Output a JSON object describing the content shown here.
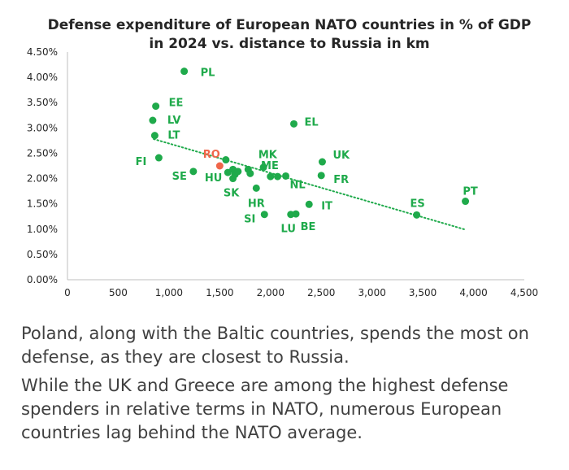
{
  "chart_data": {
    "type": "scatter",
    "title": [
      "Defense expenditure of European NATO countries in % of GDP",
      "in 2024 vs. distance to Russia in km"
    ],
    "xlabel": "",
    "ylabel": "",
    "xlim": [
      0,
      4500
    ],
    "ylim": [
      0,
      4.5
    ],
    "x_ticks": [
      0,
      500,
      1000,
      1500,
      2000,
      2500,
      3000,
      3500,
      4000,
      4500
    ],
    "x_tick_labels": [
      "0",
      "500",
      "1,000",
      "1,500",
      "2,000",
      "2,500",
      "3,000",
      "3,500",
      "4,000",
      "4,500"
    ],
    "y_ticks": [
      0,
      0.5,
      1,
      1.5,
      2,
      2.5,
      3,
      3.5,
      4,
      4.5
    ],
    "y_tick_labels": [
      "0.00%",
      "0.50%",
      "1.00%",
      "1.50%",
      "2.00%",
      "2.50%",
      "3.00%",
      "3.50%",
      "4.00%",
      "4.50%"
    ],
    "grid": false,
    "colors": {
      "points": "#1faa4b",
      "highlight": "#f0664a",
      "trend": "#1faa4b",
      "axis": "#bfbfbf"
    },
    "trendline": {
      "style": "dotted",
      "x": [
        850,
        3920
      ],
      "y": [
        2.78,
        0.99
      ]
    },
    "points": [
      {
        "label": "PL",
        "x": 1150,
        "y": 4.12
      },
      {
        "label": "EE",
        "x": 870,
        "y": 3.43
      },
      {
        "label": "LV",
        "x": 840,
        "y": 3.15
      },
      {
        "label": "LT",
        "x": 860,
        "y": 2.85
      },
      {
        "label": "FI",
        "x": 900,
        "y": 2.41
      },
      {
        "label": "EL",
        "x": 2230,
        "y": 3.08
      },
      {
        "label": "RO",
        "x": 1500,
        "y": 2.25,
        "highlight": true
      },
      {
        "label": "MK",
        "x": 1560,
        "y": 2.37
      },
      {
        "label": "SE",
        "x": 1240,
        "y": 2.14
      },
      {
        "label": "HU",
        "x": 1580,
        "y": 2.12
      },
      {
        "label": "",
        "x": 1630,
        "y": 2.18
      },
      {
        "label": "",
        "x": 1650,
        "y": 2.08
      },
      {
        "label": "",
        "x": 1680,
        "y": 2.14
      },
      {
        "label": "SK",
        "x": 1630,
        "y": 2.0
      },
      {
        "label": "",
        "x": 1780,
        "y": 2.18
      },
      {
        "label": "",
        "x": 1800,
        "y": 2.1
      },
      {
        "label": "HR",
        "x": 1860,
        "y": 1.81
      },
      {
        "label": "ME",
        "x": 1930,
        "y": 2.22
      },
      {
        "label": "",
        "x": 2000,
        "y": 2.04
      },
      {
        "label": "",
        "x": 2070,
        "y": 2.04
      },
      {
        "label": "NL",
        "x": 2150,
        "y": 2.05
      },
      {
        "label": "SI",
        "x": 1940,
        "y": 1.29
      },
      {
        "label": "LU",
        "x": 2200,
        "y": 1.29
      },
      {
        "label": "BE",
        "x": 2250,
        "y": 1.3
      },
      {
        "label": "IT",
        "x": 2380,
        "y": 1.49
      },
      {
        "label": "UK",
        "x": 2510,
        "y": 2.33
      },
      {
        "label": "FR",
        "x": 2500,
        "y": 2.06
      },
      {
        "label": "ES",
        "x": 3440,
        "y": 1.28
      },
      {
        "label": "PT",
        "x": 3920,
        "y": 1.55
      }
    ]
  },
  "caption": {
    "paragraph1": "Poland, along with the Baltic countries, spends the most on defense, as they are closest to Russia.",
    "paragraph2": "While the UK and Greece are among the highest defense spenders in relative terms in NATO, numerous European countries lag behind the NATO average."
  }
}
